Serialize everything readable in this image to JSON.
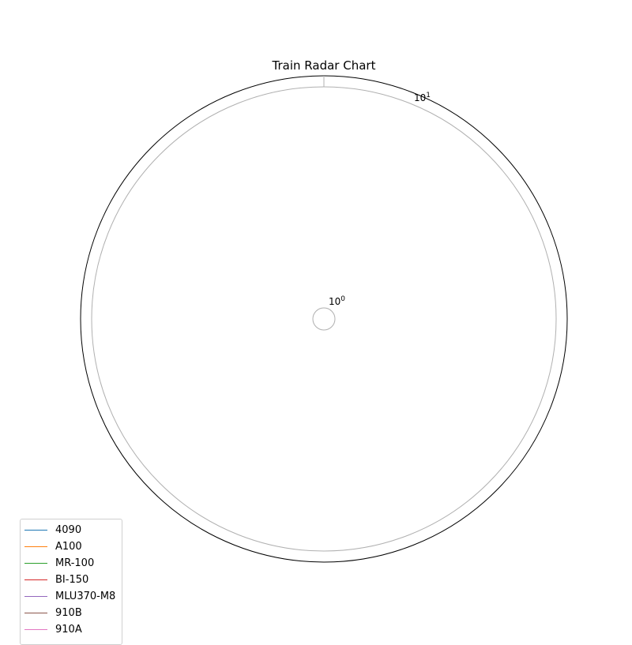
{
  "chart_data": {
    "type": "radar",
    "title": "Train Radar Chart",
    "radial_scale": "log",
    "radial_ticks": [
      {
        "base": "10",
        "exp": "0",
        "value": 1
      },
      {
        "base": "10",
        "exp": "1",
        "value": 10
      }
    ],
    "categories": [],
    "series": [
      {
        "name": "4090",
        "color": "#1f77b4",
        "values": []
      },
      {
        "name": "A100",
        "color": "#ff7f0e",
        "values": []
      },
      {
        "name": "MR-100",
        "color": "#2ca02c",
        "values": []
      },
      {
        "name": "BI-150",
        "color": "#d62728",
        "values": []
      },
      {
        "name": "MLU370-M8",
        "color": "#9467bd",
        "values": []
      },
      {
        "name": "910B",
        "color": "#8c564b",
        "values": []
      },
      {
        "name": "910A",
        "color": "#e377c2",
        "values": []
      }
    ],
    "grid": true,
    "legend_position": "lower-left"
  }
}
